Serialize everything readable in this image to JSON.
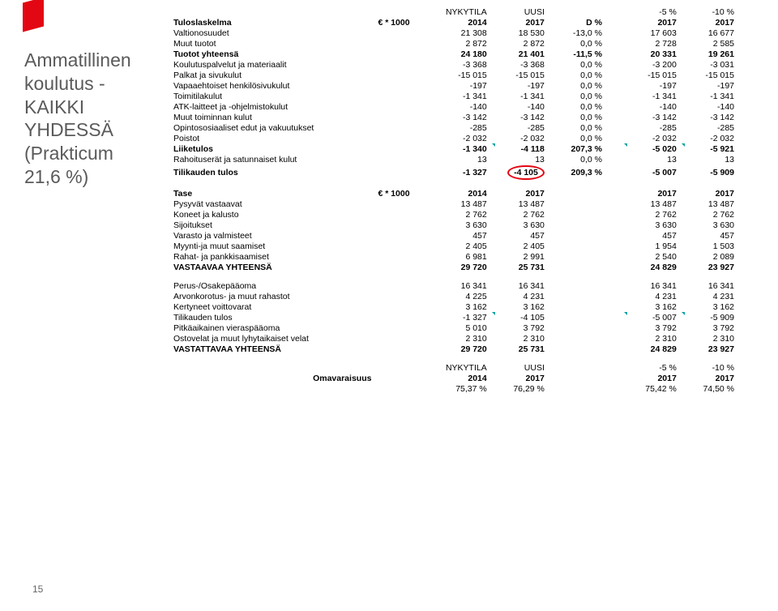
{
  "title_lines": [
    "Ammatillinen",
    "koulutus -",
    "KAIKKI",
    "YHDESSÄ",
    "(Prakticum",
    "21,6 %)"
  ],
  "page_number": "15",
  "topband": {
    "c1": "NYKYTILA",
    "c2": "UUSI",
    "c3": "-5 %",
    "c4": "-10 %"
  },
  "tulos_header": {
    "label": "Tuloslaskelma",
    "unit": "€ * 1000",
    "c1": "2014",
    "c2": "2017",
    "c3": "D %",
    "c4": "2017",
    "c5": "2017"
  },
  "tulos_rows": [
    {
      "label": "Valtionosuudet",
      "v": [
        "21 308",
        "18 530",
        "-13,0 %",
        "17 603",
        "16 677"
      ]
    },
    {
      "label": "Muut tuotot",
      "v": [
        "2 872",
        "2 872",
        "0,0 %",
        "2 728",
        "2 585"
      ]
    },
    {
      "label": "Tuotot yhteensä",
      "v": [
        "24 180",
        "21 401",
        "-11,5 %",
        "20 331",
        "19 261"
      ],
      "bold": true
    },
    {
      "label": "Koulutuspalvelut ja materiaalit",
      "v": [
        "-3 368",
        "-3 368",
        "0,0 %",
        "-3 200",
        "-3 031"
      ]
    },
    {
      "label": "Palkat ja sivukulut",
      "v": [
        "-15 015",
        "-15 015",
        "0,0 %",
        "-15 015",
        "-15 015"
      ]
    },
    {
      "label": "Vapaaehtoiset henkilösivukulut",
      "v": [
        "-197",
        "-197",
        "0,0 %",
        "-197",
        "-197"
      ]
    },
    {
      "label": "Toimitilakulut",
      "v": [
        "-1 341",
        "-1 341",
        "0,0 %",
        "-1 341",
        "-1 341"
      ]
    },
    {
      "label": "ATK-laitteet ja -ohjelmistokulut",
      "v": [
        "-140",
        "-140",
        "0,0 %",
        "-140",
        "-140"
      ]
    },
    {
      "label": "Muut toiminnan kulut",
      "v": [
        "-3 142",
        "-3 142",
        "0,0 %",
        "-3 142",
        "-3 142"
      ]
    },
    {
      "label": "Opintososiaaliset edut ja vakuutukset",
      "v": [
        "-285",
        "-285",
        "0,0 %",
        "-285",
        "-285"
      ]
    },
    {
      "label": "Poistot",
      "v": [
        "-2 032",
        "-2 032",
        "0,0 %",
        "-2 032",
        "-2 032"
      ]
    },
    {
      "label": "Liiketulos",
      "v": [
        "-1 340",
        "-4 118",
        "207,3 %",
        "-5 020",
        "-5 921"
      ],
      "bold": true,
      "ticks": [
        1,
        3,
        4
      ]
    },
    {
      "label": "Rahoituserät ja satunnaiset kulut",
      "v": [
        "13",
        "13",
        "0,0 %",
        "13",
        "13"
      ]
    },
    {
      "label": "Tilikauden tulos",
      "v": [
        "-1 327",
        "-4 105",
        "209,3 %",
        "-5 007",
        "-5 909"
      ],
      "bold": true,
      "circle": [
        1
      ]
    }
  ],
  "tase_header": {
    "label": "Tase",
    "unit": "€ * 1000",
    "c1": "2014",
    "c2": "2017",
    "c3": "",
    "c4": "2017",
    "c5": "2017"
  },
  "tase_rows1": [
    {
      "label": "Pysyvät vastaavat",
      "v": [
        "13 487",
        "13 487",
        "",
        "13 487",
        "13 487"
      ]
    },
    {
      "label": "Koneet ja kalusto",
      "v": [
        "2 762",
        "2 762",
        "",
        "2 762",
        "2 762"
      ]
    },
    {
      "label": "Sijoitukset",
      "v": [
        "3 630",
        "3 630",
        "",
        "3 630",
        "3 630"
      ]
    },
    {
      "label": "Varasto ja valmisteet",
      "v": [
        "457",
        "457",
        "",
        "457",
        "457"
      ]
    },
    {
      "label": "Myynti-ja muut saamiset",
      "v": [
        "2 405",
        "2 405",
        "",
        "1 954",
        "1 503"
      ]
    },
    {
      "label": "Rahat- ja pankkisaamiset",
      "v": [
        "6 981",
        "2 991",
        "",
        "2 540",
        "2 089"
      ]
    },
    {
      "label": "VASTAAVAA YHTEENSÄ",
      "v": [
        "29 720",
        "25 731",
        "",
        "24 829",
        "23 927"
      ],
      "bold": true
    }
  ],
  "tase_rows2": [
    {
      "label": "Perus-/Osakepääoma",
      "v": [
        "16 341",
        "16 341",
        "",
        "16 341",
        "16 341"
      ]
    },
    {
      "label": "Arvonkorotus- ja muut rahastot",
      "v": [
        "4 225",
        "4 231",
        "",
        "4 231",
        "4 231"
      ]
    },
    {
      "label": "Kertyneet voittovarat",
      "v": [
        "3 162",
        "3 162",
        "",
        "3 162",
        "3 162"
      ]
    },
    {
      "label": "Tilikauden tulos",
      "v": [
        "-1 327",
        "-4 105",
        "",
        "-5 007",
        "-5 909"
      ],
      "ticks": [
        1,
        3,
        4
      ]
    },
    {
      "label": "Pitkäaikainen vieraspääoma",
      "v": [
        "5 010",
        "3 792",
        "",
        "3 792",
        "3 792"
      ]
    },
    {
      "label": "Ostovelat ja muut lyhytaikaiset velat",
      "v": [
        "2 310",
        "2 310",
        "",
        "2 310",
        "2 310"
      ]
    },
    {
      "label": "VASTATTAVAA YHTEENSÄ",
      "v": [
        "29 720",
        "25 731",
        "",
        "24 829",
        "23 927"
      ],
      "bold": true
    }
  ],
  "oma_top": {
    "c1": "NYKYTILA",
    "c2": "UUSI",
    "c3": "-5 %",
    "c4": "-10 %"
  },
  "oma_header": {
    "label": "Omavaraisuus",
    "c1": "2014",
    "c2": "2017",
    "c3": "2017",
    "c4": "2017"
  },
  "oma_row": {
    "v": [
      "75,37 %",
      "76,29 %",
      "",
      "75,42 %",
      "74,50 %"
    ]
  }
}
